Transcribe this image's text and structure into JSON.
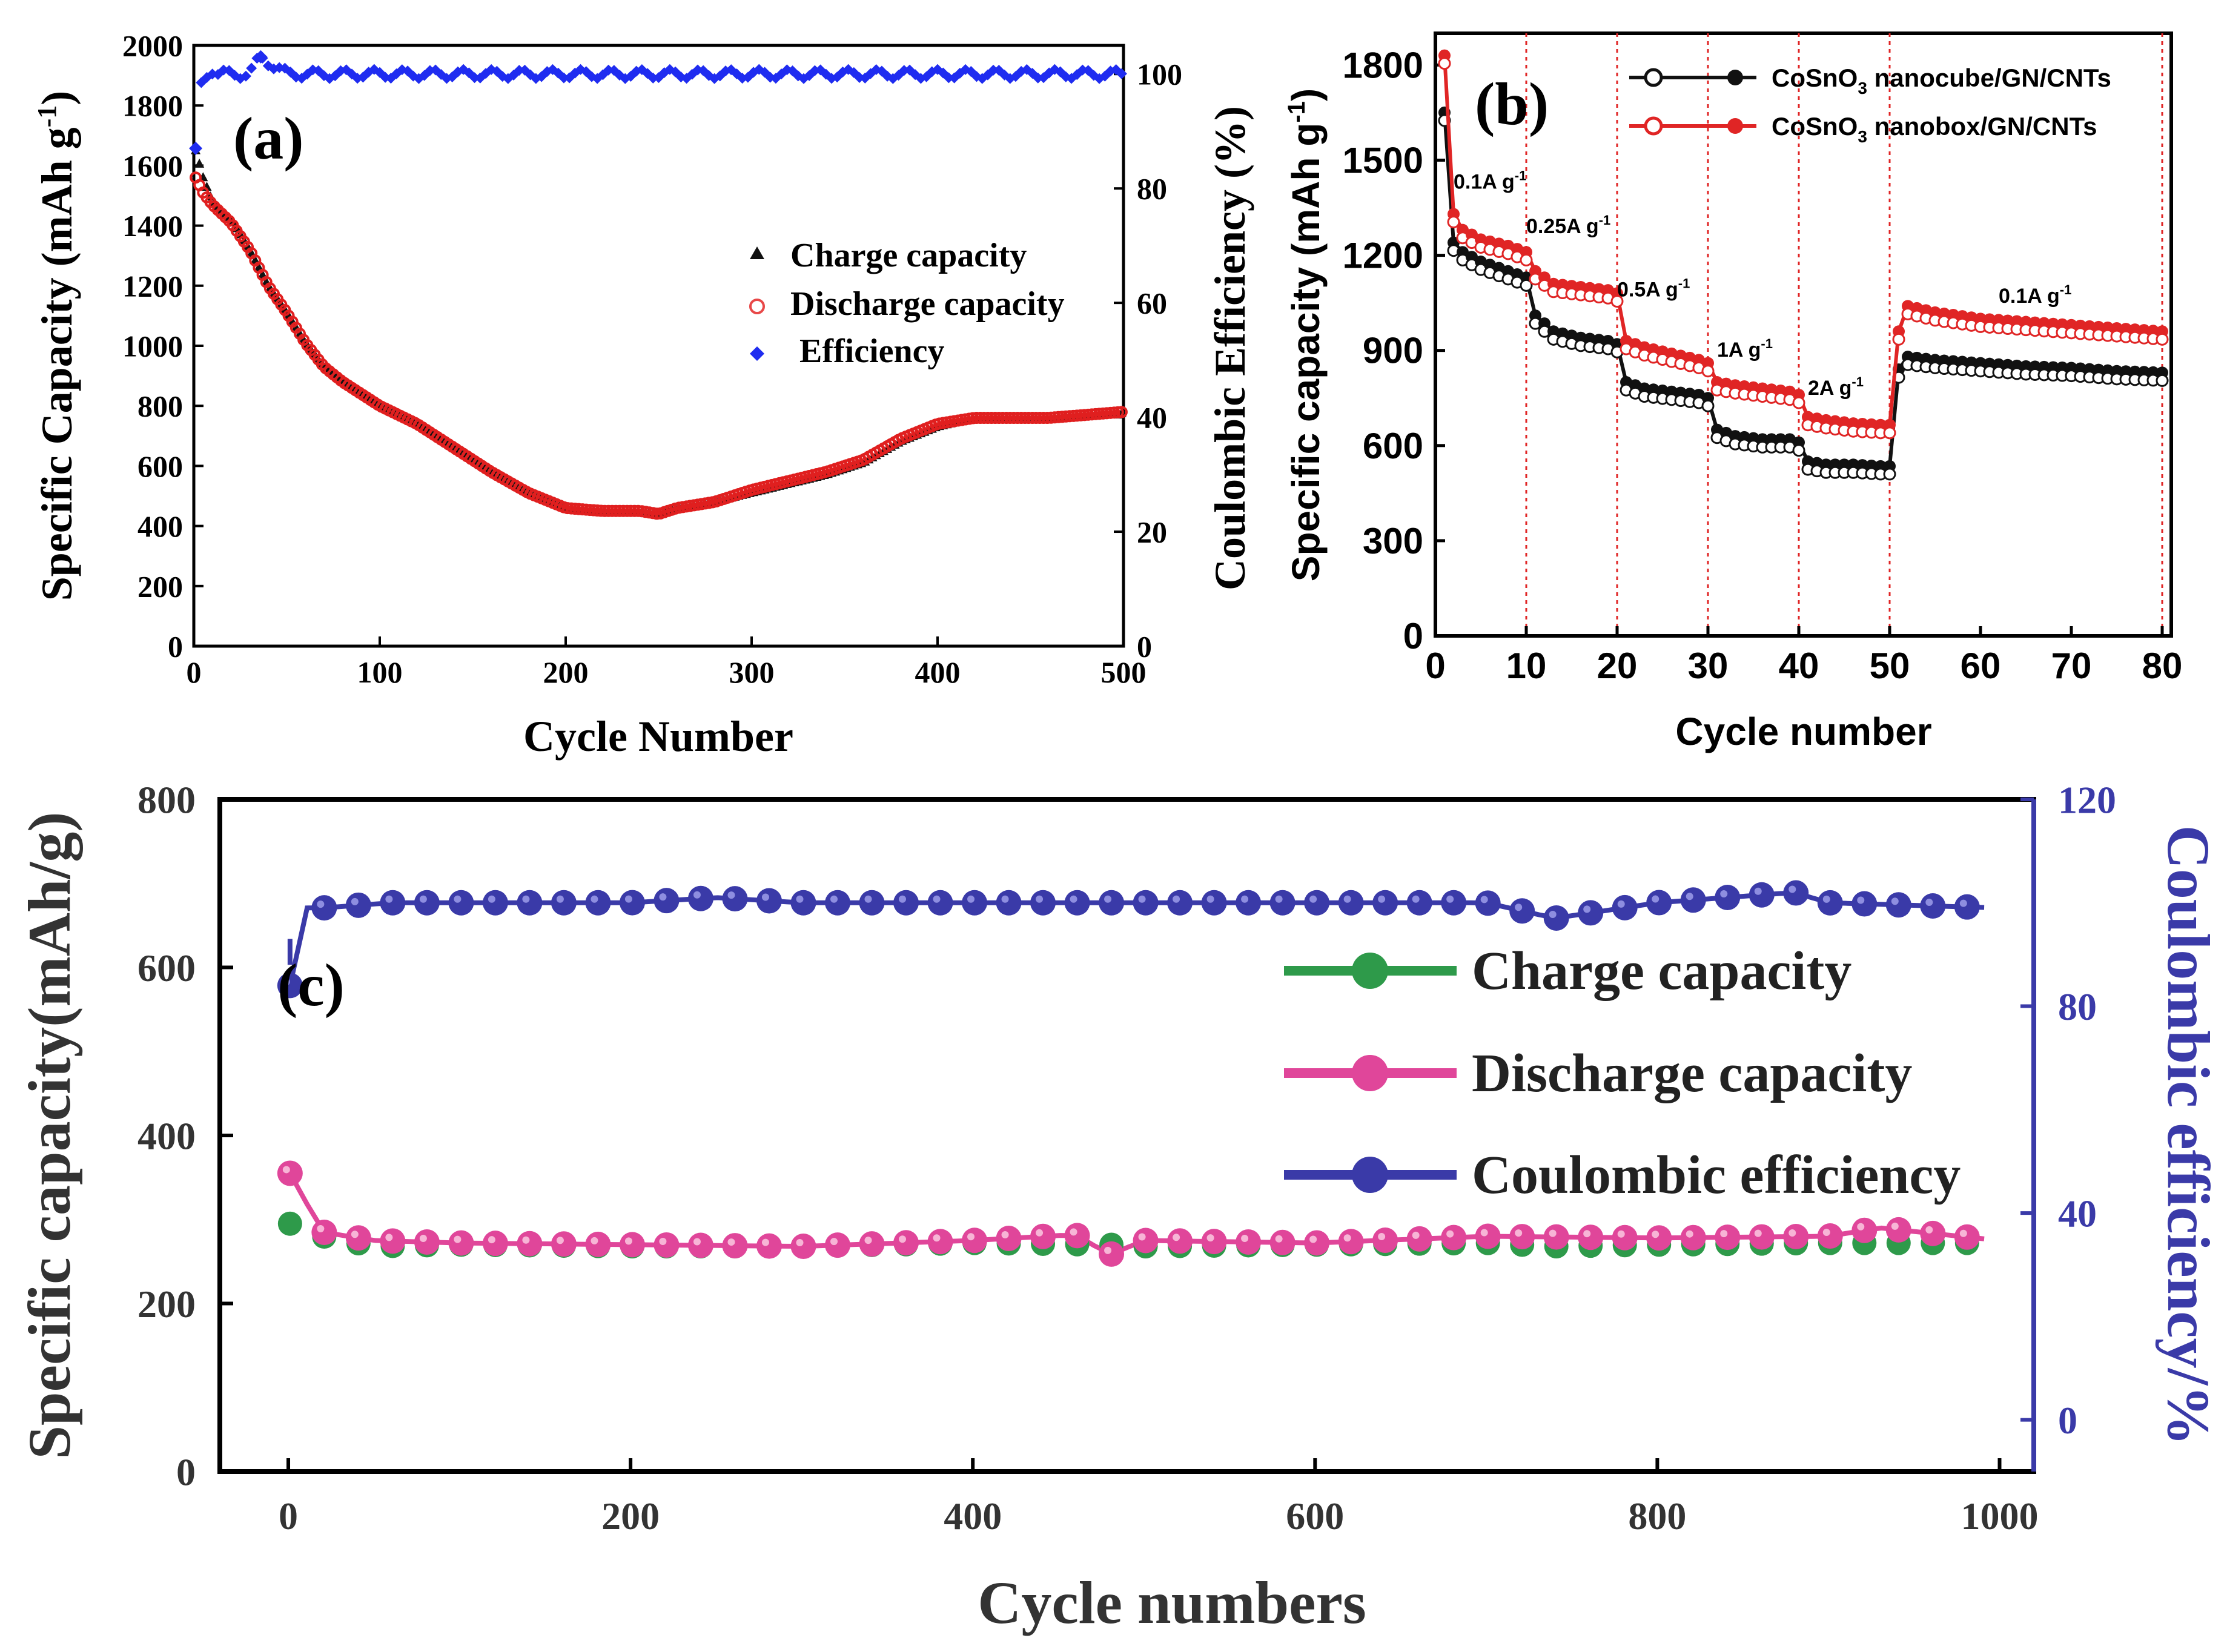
{
  "chart_data": [
    {
      "panel": "(a)",
      "type": "scatter",
      "xlabel": "Cycle Number",
      "ylabel": "Specific Capacity (mAh g",
      "ylabel_sup": "-1",
      "ylabel_close": ")",
      "y2label": "Coulombic Efficiency (%)",
      "xlim": [
        0,
        500
      ],
      "ylim": [
        0,
        2000
      ],
      "y2lim": [
        0,
        105
      ],
      "xticks": [
        0,
        100,
        200,
        300,
        400,
        500
      ],
      "yticks": [
        0,
        200,
        400,
        600,
        800,
        1000,
        1200,
        1400,
        1600,
        1800,
        2000
      ],
      "y2ticks": [
        0,
        20,
        40,
        60,
        80,
        100
      ],
      "legend": [
        "Charge capacity",
        "Discharge capacity",
        "Efficiency"
      ],
      "series": [
        {
          "name": "Charge capacity",
          "x": [
            1,
            5,
            10,
            20,
            30,
            40,
            50,
            60,
            70,
            80,
            100,
            120,
            140,
            160,
            180,
            200,
            220,
            240,
            250,
            260,
            280,
            300,
            320,
            340,
            360,
            380,
            400,
            420,
            440,
            460,
            480,
            500
          ],
          "values": [
            1650,
            1560,
            1480,
            1420,
            1320,
            1200,
            1110,
            1010,
            930,
            880,
            800,
            740,
            660,
            580,
            510,
            460,
            450,
            450,
            440,
            460,
            480,
            510,
            540,
            570,
            610,
            680,
            730,
            760,
            755,
            760,
            770,
            775
          ]
        },
        {
          "name": "Discharge capacity",
          "x": [
            1,
            5,
            10,
            20,
            30,
            40,
            50,
            60,
            70,
            80,
            100,
            120,
            140,
            160,
            180,
            200,
            220,
            240,
            250,
            260,
            280,
            300,
            320,
            340,
            360,
            380,
            400,
            420,
            440,
            460,
            480,
            500
          ],
          "values": [
            1560,
            1510,
            1470,
            1410,
            1320,
            1200,
            1110,
            1010,
            930,
            880,
            800,
            740,
            660,
            580,
            510,
            460,
            450,
            450,
            440,
            460,
            480,
            520,
            550,
            580,
            620,
            690,
            740,
            760,
            760,
            760,
            770,
            780
          ]
        },
        {
          "name": "Efficiency",
          "axis": "right",
          "x": [
            1,
            3,
            5,
            10,
            20,
            30,
            36,
            50,
            100,
            150,
            200,
            250,
            300,
            350,
            400,
            450,
            500
          ],
          "values": [
            87,
            98,
            99,
            100,
            100,
            100,
            103,
            100,
            100,
            100,
            100,
            100,
            100,
            100,
            100,
            100,
            100
          ]
        }
      ]
    },
    {
      "panel": "(b)",
      "type": "line",
      "xlabel": "Cycle number",
      "ylabel": "Specific capacity (mAh g",
      "ylabel_sup": "-1",
      "ylabel_close": ")",
      "xlim": [
        0,
        81
      ],
      "ylim": [
        0,
        1900
      ],
      "xticks": [
        0,
        10,
        20,
        30,
        40,
        50,
        60,
        70,
        80
      ],
      "yticks": [
        0,
        300,
        600,
        900,
        1200,
        1500,
        1800
      ],
      "vlines": [
        10,
        20,
        30,
        40,
        50,
        80
      ],
      "rate_labels": [
        {
          "text": "0.1A g",
          "sup": "-1",
          "x": 2,
          "y": 1410
        },
        {
          "text": "0.25A g",
          "sup": "-1",
          "x": 10,
          "y": 1270
        },
        {
          "text": "0.5A g",
          "sup": "-1",
          "x": 20,
          "y": 1070
        },
        {
          "text": "1A g",
          "sup": "-1",
          "x": 31,
          "y": 880
        },
        {
          "text": "2A g",
          "sup": "-1",
          "x": 41,
          "y": 760
        },
        {
          "text": "0.1A g",
          "sup": "-1",
          "x": 62,
          "y": 1050
        }
      ],
      "legend_items": [
        {
          "pre": "CoSnO",
          "sub": "3",
          "post": " nanocube/GN/CNTs"
        },
        {
          "pre": "CoSnO",
          "sub": "3",
          "post": " nanobox/GN/CNTs"
        }
      ],
      "series": [
        {
          "name": "CoSnO3 nanocube/GN/CNTs",
          "x": [
            1,
            2,
            3,
            5,
            8,
            10,
            11,
            13,
            16,
            19,
            20,
            21,
            23,
            26,
            29,
            30,
            31,
            33,
            36,
            39,
            40,
            41,
            43,
            46,
            49,
            50,
            51,
            52,
            55,
            60,
            65,
            70,
            75,
            80
          ],
          "values": [
            1650,
            1240,
            1210,
            1180,
            1150,
            1130,
            1010,
            960,
            940,
            930,
            920,
            800,
            780,
            770,
            760,
            750,
            650,
            630,
            620,
            620,
            610,
            550,
            540,
            540,
            535,
            535,
            840,
            880,
            870,
            860,
            850,
            845,
            835,
            830
          ]
        },
        {
          "name": "CoSnO3 nanobox/GN/CNTs",
          "x": [
            1,
            2,
            3,
            5,
            8,
            10,
            11,
            13,
            16,
            19,
            20,
            21,
            23,
            26,
            29,
            30,
            31,
            33,
            36,
            39,
            40,
            41,
            43,
            46,
            49,
            50,
            51,
            52,
            55,
            60,
            65,
            70,
            75,
            80
          ],
          "values": [
            1830,
            1330,
            1280,
            1250,
            1230,
            1210,
            1150,
            1110,
            1100,
            1090,
            1080,
            930,
            910,
            890,
            870,
            860,
            800,
            790,
            780,
            770,
            760,
            690,
            680,
            670,
            665,
            665,
            960,
            1040,
            1020,
            1000,
            990,
            980,
            970,
            960
          ]
        }
      ]
    },
    {
      "panel": "(c)",
      "type": "line",
      "xlabel": "Cycle numbers",
      "ylabel": "Specific capacity(mAh/g)",
      "y2label": "Coulombic efficiency/%",
      "xlim": [
        -40,
        1020
      ],
      "ylim": [
        0,
        800
      ],
      "y2lim": [
        -10,
        120
      ],
      "xticks": [
        0,
        200,
        400,
        600,
        800,
        1000
      ],
      "yticks": [
        0,
        200,
        400,
        600,
        800
      ],
      "y2ticks": [
        0,
        40,
        80,
        120
      ],
      "legend": [
        "Charge capacity",
        "Discharge capacity",
        "Coulombic efficiency"
      ],
      "series": [
        {
          "name": "Charge capacity",
          "x": [
            1,
            20,
            50,
            100,
            200,
            300,
            400,
            480,
            500,
            600,
            700,
            740,
            800,
            900,
            1000
          ],
          "values": [
            295,
            280,
            268,
            270,
            268,
            268,
            272,
            270,
            268,
            270,
            272,
            268,
            270,
            272,
            272
          ]
        },
        {
          "name": "Discharge capacity",
          "x": [
            1,
            20,
            50,
            100,
            200,
            300,
            400,
            460,
            480,
            500,
            600,
            700,
            800,
            900,
            930,
            1000
          ],
          "values": [
            355,
            285,
            275,
            272,
            270,
            268,
            275,
            282,
            258,
            275,
            272,
            280,
            278,
            280,
            290,
            275
          ]
        },
        {
          "name": "Coulombic efficiency",
          "axis": "right",
          "x": [
            1,
            5,
            10,
            20,
            60,
            100,
            200,
            250,
            300,
            400,
            500,
            600,
            700,
            740,
            800,
            880,
            900,
            1000
          ],
          "values": [
            84,
            93,
            99,
            99,
            100,
            100,
            100,
            101,
            100,
            100,
            100,
            100,
            100,
            97,
            100,
            102,
            100,
            99
          ]
        }
      ]
    }
  ]
}
